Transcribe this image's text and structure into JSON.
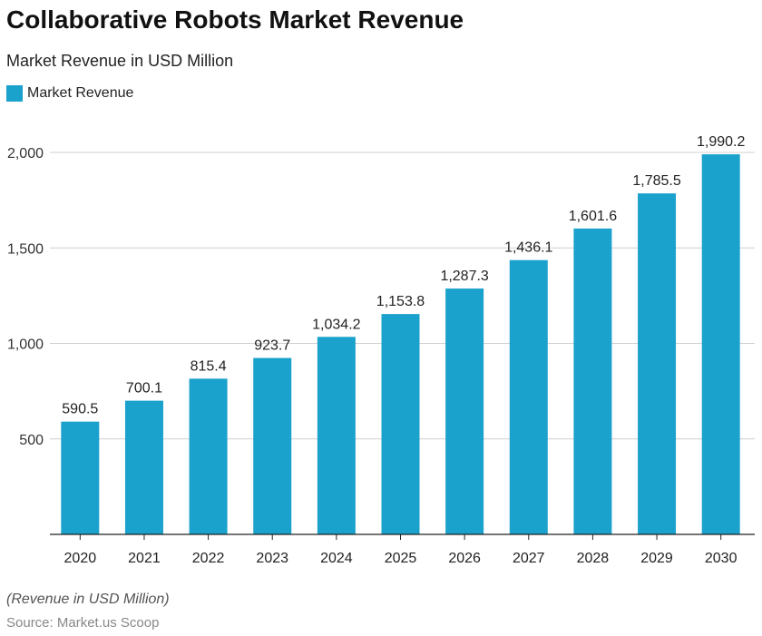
{
  "chart_data": {
    "type": "bar",
    "title": "Collaborative Robots Market Revenue",
    "subtitle": "Market Revenue in USD Million",
    "categories": [
      "2020",
      "2021",
      "2022",
      "2023",
      "2024",
      "2025",
      "2026",
      "2027",
      "2028",
      "2029",
      "2030"
    ],
    "series": [
      {
        "name": "Market Revenue",
        "values": [
          590.5,
          700.1,
          815.4,
          923.7,
          1034.2,
          1153.8,
          1287.3,
          1436.1,
          1601.6,
          1785.5,
          1990.2
        ],
        "color": "#1aa1cc"
      }
    ],
    "data_labels": [
      "590.5",
      "700.1",
      "815.4",
      "923.7",
      "1,034.2",
      "1,153.8",
      "1,287.3",
      "1,436.1",
      "1,601.6",
      "1,785.5",
      "1,990.2"
    ],
    "yticks": [
      500,
      1000,
      1500,
      2000
    ],
    "ytick_labels": [
      "500",
      "1,000",
      "1,500",
      "2,000"
    ],
    "ylim": [
      0,
      2000
    ],
    "grid": true,
    "legend_position": "top-left",
    "note": "(Revenue in USD Million)",
    "source": "Source: Market.us Scoop"
  }
}
